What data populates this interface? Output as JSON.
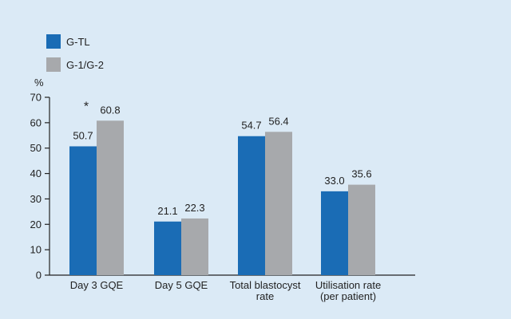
{
  "chart_data": {
    "type": "bar",
    "categories": [
      [
        "Day 3 GQE"
      ],
      [
        "Day 5 GQE"
      ],
      [
        "Total blastocyst",
        "rate"
      ],
      [
        "Utilisation rate",
        "(per patient)"
      ]
    ],
    "series": [
      {
        "name": "G-TL",
        "color": "#1a6cb5",
        "values": [
          50.7,
          21.1,
          54.7,
          33.0
        ],
        "labels": [
          "50.7",
          "21.1",
          "54.7",
          "33.0"
        ]
      },
      {
        "name": "G-1/G-2",
        "color": "#a7a9ac",
        "values": [
          60.8,
          22.3,
          56.4,
          35.6
        ],
        "labels": [
          "60.8",
          "22.3",
          "56.4",
          "35.6"
        ]
      }
    ],
    "ylabel": "%",
    "ylim": [
      0,
      70
    ],
    "yticks": [
      0,
      10,
      20,
      30,
      40,
      50,
      60,
      70
    ],
    "grid": false,
    "legend_position": "top-left",
    "annotations": [
      {
        "text": "*",
        "category_index": 0
      }
    ]
  }
}
